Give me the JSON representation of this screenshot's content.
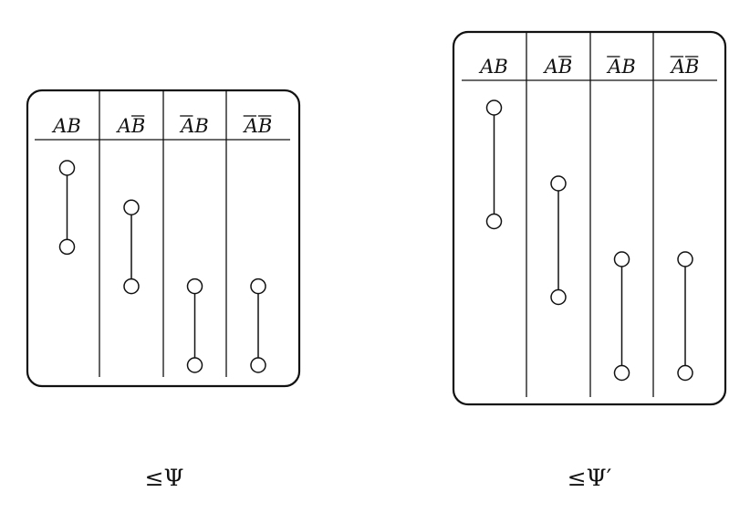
{
  "panels": [
    {
      "caption": "≤Ψ",
      "columns": [
        {
          "letters": [
            {
              "ch": "A",
              "bar": false
            },
            {
              "ch": "B",
              "bar": false
            }
          ],
          "group_bar": false
        },
        {
          "letters": [
            {
              "ch": "A",
              "bar": false
            },
            {
              "ch": "B",
              "bar": true
            }
          ],
          "group_bar": false
        },
        {
          "letters": [
            {
              "ch": "A",
              "bar": true
            },
            {
              "ch": "B",
              "bar": false
            }
          ],
          "group_bar": false
        },
        {
          "letters": [
            {
              "ch": "A",
              "bar": true
            },
            {
              "ch": "B",
              "bar": true
            }
          ],
          "group_bar": false
        }
      ],
      "intervals": [
        {
          "col": 0,
          "from": 0,
          "to": 2
        },
        {
          "col": 1,
          "from": 1,
          "to": 3
        },
        {
          "col": 2,
          "from": 3,
          "to": 5
        },
        {
          "col": 3,
          "from": 3,
          "to": 5
        }
      ]
    },
    {
      "caption": "≤Ψ′",
      "columns": [
        {
          "letters": [
            {
              "ch": "A",
              "bar": false
            },
            {
              "ch": "B",
              "bar": false
            }
          ],
          "group_bar": false
        },
        {
          "letters": [
            {
              "ch": "A",
              "bar": false
            },
            {
              "ch": "B",
              "bar": true
            }
          ],
          "group_bar": false
        },
        {
          "letters": [
            {
              "ch": "A",
              "bar": true
            },
            {
              "ch": "B",
              "bar": false
            }
          ],
          "group_bar": false
        },
        {
          "letters": [
            {
              "ch": "A",
              "bar": true
            },
            {
              "ch": "B",
              "bar": true
            }
          ],
          "group_bar": false
        }
      ],
      "intervals": [
        {
          "col": 0,
          "from": 0,
          "to": 3
        },
        {
          "col": 1,
          "from": 2,
          "to": 5
        },
        {
          "col": 2,
          "from": 4,
          "to": 7
        },
        {
          "col": 3,
          "from": 4,
          "to": 7
        }
      ]
    }
  ]
}
